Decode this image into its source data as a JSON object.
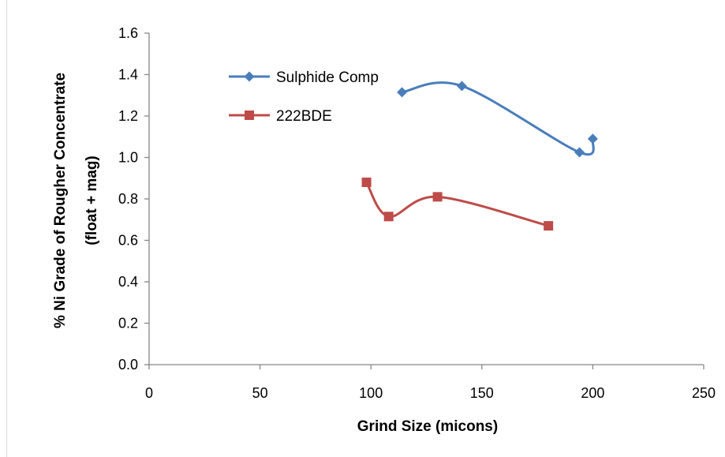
{
  "chart_data": {
    "type": "scatter",
    "xlabel": "Grind Size (micons)",
    "ylabel_line1": "% Ni Grade of Rougher Concentrate",
    "ylabel_line2": "(float + mag)",
    "xlim": [
      0,
      250
    ],
    "ylim": [
      0,
      1.6
    ],
    "x_ticks": [
      0,
      50,
      100,
      150,
      200,
      250
    ],
    "y_ticks": [
      0.0,
      0.2,
      0.4,
      0.6,
      0.8,
      1.0,
      1.2,
      1.4,
      1.6
    ],
    "x_tick_labels": [
      "0",
      "50",
      "100",
      "150",
      "200",
      "250"
    ],
    "y_tick_labels": [
      "0.0",
      "0.2",
      "0.4",
      "0.6",
      "0.8",
      "1.0",
      "1.2",
      "1.4",
      "1.6"
    ],
    "grid": false,
    "legend_position": "top-left",
    "series": [
      {
        "name": "Sulphide Comp",
        "color": "#4a7ebb",
        "marker": "diamond",
        "smooth": true,
        "x": [
          114,
          141,
          194,
          200
        ],
        "y": [
          1.315,
          1.345,
          1.025,
          1.09
        ]
      },
      {
        "name": "222BDE",
        "color": "#be4b48",
        "marker": "square",
        "smooth": true,
        "x": [
          98,
          108,
          130,
          180
        ],
        "y": [
          0.88,
          0.715,
          0.81,
          0.67
        ]
      }
    ]
  }
}
